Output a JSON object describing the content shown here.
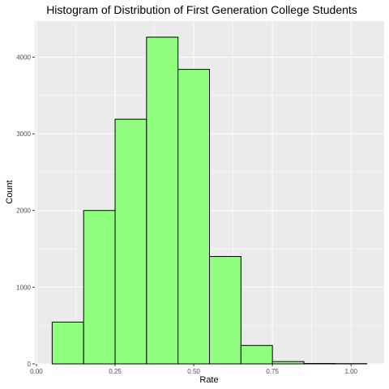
{
  "chart_data": {
    "type": "bar",
    "title": "Histogram of Distribution of First Generation College Students",
    "xlabel": "Rate",
    "ylabel": "Count",
    "xlim": [
      -0.005,
      1.105
    ],
    "ylim": [
      0,
      4470
    ],
    "x_ticks": [
      0.0,
      0.25,
      0.5,
      0.75,
      1.0
    ],
    "x_tick_labels": [
      "0.00",
      "0.25",
      "0.50",
      "0.75",
      "1.00"
    ],
    "y_ticks": [
      0,
      1000,
      2000,
      3000,
      4000
    ],
    "y_tick_labels": [
      "0",
      "1000",
      "2000",
      "3000",
      "4000"
    ],
    "bin_width": 0.1,
    "bin_centers": [
      0.1,
      0.2,
      0.3,
      0.4,
      0.5,
      0.6,
      0.7,
      0.8,
      0.9,
      1.0
    ],
    "values": [
      545,
      2000,
      3190,
      4260,
      3840,
      1400,
      240,
      30,
      5,
      3
    ],
    "grid": true,
    "legend": "none",
    "colors": {
      "panel_background": "#ebebeb",
      "grid_major": "#ffffff",
      "bar_fill": "#90ff7f",
      "bar_stroke": "#000000"
    }
  }
}
